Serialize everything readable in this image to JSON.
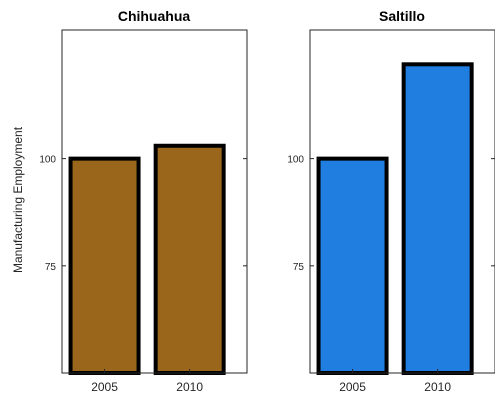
{
  "chart_data": [
    {
      "type": "bar",
      "title": "Chihuahua",
      "ylabel": "Manufacturing Employment",
      "categories": [
        "2005",
        "2010"
      ],
      "values": [
        100,
        103
      ],
      "ylim": [
        50,
        130
      ],
      "yticks": [
        75,
        100
      ],
      "color": "#9a661c",
      "grid": false
    },
    {
      "type": "bar",
      "title": "Saltillo",
      "ylabel": "",
      "categories": [
        "2005",
        "2010"
      ],
      "values": [
        100,
        122
      ],
      "ylim": [
        50,
        130
      ],
      "yticks": [
        75,
        100
      ],
      "color": "#1f7ee0",
      "grid": false
    }
  ]
}
